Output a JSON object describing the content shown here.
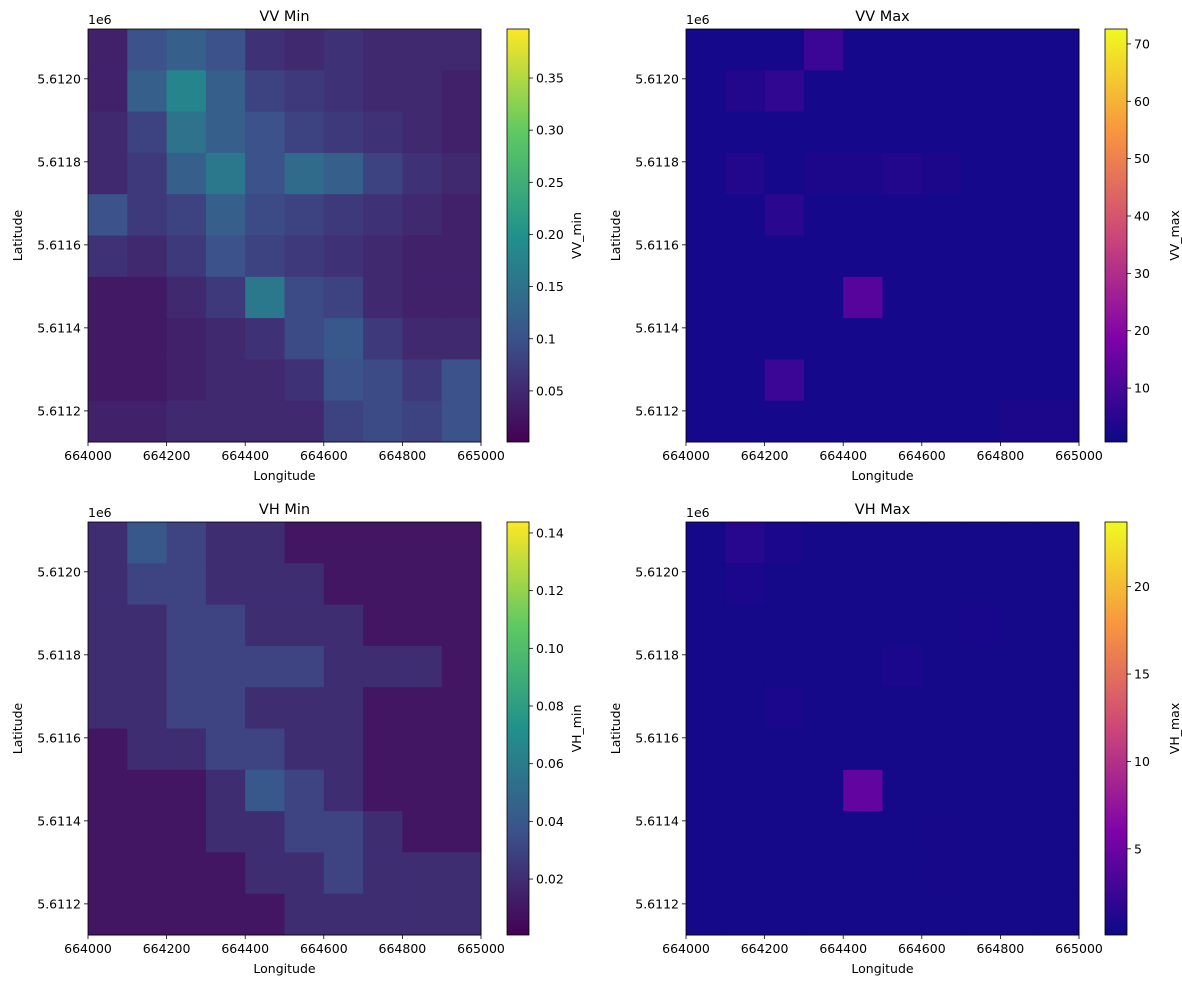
{
  "chart_data": [
    {
      "type": "heatmap",
      "title": "VV Min",
      "xlabel": "Longitude",
      "ylabel": "Latitude",
      "y_offset_label": "1e6",
      "colorbar_label": "VV_min",
      "cmap": "viridis",
      "xlim": [
        664000,
        665000
      ],
      "ylim": [
        5611125,
        5612120
      ],
      "xticks": [
        664000,
        664200,
        664400,
        664600,
        664800,
        665000
      ],
      "yticks": [
        {
          "value": 5611200,
          "label": "5.6112"
        },
        {
          "value": 5611400,
          "label": "5.6114"
        },
        {
          "value": 5611600,
          "label": "5.6116"
        },
        {
          "value": 5611800,
          "label": "5.6118"
        },
        {
          "value": 5612000,
          "label": "5.6120"
        }
      ],
      "clim": [
        0.001,
        0.397
      ],
      "cticks": [
        0.05,
        0.1,
        {
          "value": 0.15,
          "label": "0.15"
        },
        {
          "value": 0.2,
          "label": "0.20"
        },
        0.25,
        {
          "value": 0.3,
          "label": "0.30"
        },
        0.35
      ],
      "values": [
        [
          0.04,
          0.1,
          0.12,
          0.1,
          0.06,
          0.05,
          0.06,
          0.05,
          0.05,
          0.05
        ],
        [
          0.04,
          0.12,
          0.18,
          0.12,
          0.08,
          0.07,
          0.06,
          0.05,
          0.05,
          0.04
        ],
        [
          0.05,
          0.08,
          0.15,
          0.12,
          0.1,
          0.08,
          0.07,
          0.06,
          0.05,
          0.04
        ],
        [
          0.05,
          0.07,
          0.12,
          0.16,
          0.1,
          0.14,
          0.12,
          0.08,
          0.06,
          0.05
        ],
        [
          0.1,
          0.07,
          0.08,
          0.12,
          0.09,
          0.08,
          0.07,
          0.06,
          0.05,
          0.04
        ],
        [
          0.06,
          0.05,
          0.07,
          0.1,
          0.08,
          0.07,
          0.06,
          0.05,
          0.04,
          0.04
        ],
        [
          0.03,
          0.03,
          0.05,
          0.07,
          0.16,
          0.09,
          0.08,
          0.05,
          0.04,
          0.04
        ],
        [
          0.03,
          0.03,
          0.04,
          0.05,
          0.06,
          0.09,
          0.11,
          0.07,
          0.05,
          0.05
        ],
        [
          0.03,
          0.03,
          0.04,
          0.05,
          0.05,
          0.06,
          0.1,
          0.09,
          0.07,
          0.1
        ],
        [
          0.04,
          0.04,
          0.05,
          0.05,
          0.05,
          0.05,
          0.08,
          0.09,
          0.08,
          0.1
        ]
      ]
    },
    {
      "type": "heatmap",
      "title": "VV Max",
      "xlabel": "Longitude",
      "ylabel": "Latitude",
      "y_offset_label": "1e6",
      "colorbar_label": "VV_max",
      "cmap": "plasma",
      "xlim": [
        664000,
        665000
      ],
      "ylim": [
        5611125,
        5612120
      ],
      "xticks": [
        664000,
        664200,
        664400,
        664600,
        664800,
        665000
      ],
      "yticks": [
        {
          "value": 5611200,
          "label": "5.6112"
        },
        {
          "value": 5611400,
          "label": "5.6114"
        },
        {
          "value": 5611600,
          "label": "5.6116"
        },
        {
          "value": 5611800,
          "label": "5.6118"
        },
        {
          "value": 5612000,
          "label": "5.6120"
        }
      ],
      "clim": [
        0.6,
        72.6
      ],
      "cticks": [
        10,
        20,
        30,
        40,
        50,
        60,
        70
      ],
      "values": [
        [
          2,
          2,
          2,
          8,
          2,
          2,
          2,
          2,
          2,
          2
        ],
        [
          2,
          4,
          6,
          2,
          2,
          2,
          2,
          2,
          2,
          2
        ],
        [
          2,
          2,
          2,
          2,
          2,
          2,
          2,
          2,
          2,
          2
        ],
        [
          2,
          4,
          2,
          3,
          3,
          4,
          3,
          2,
          2,
          2
        ],
        [
          2,
          2,
          5,
          2,
          2,
          2,
          2,
          2,
          2,
          2
        ],
        [
          2,
          2,
          2,
          2,
          2,
          2,
          2,
          2,
          2,
          2
        ],
        [
          2,
          2,
          2,
          2,
          12,
          2,
          2,
          2,
          2,
          2
        ],
        [
          2,
          2,
          2,
          2,
          2,
          2,
          2,
          2,
          2,
          2
        ],
        [
          2,
          2,
          8,
          2,
          2,
          2,
          2,
          2,
          2,
          2
        ],
        [
          2,
          2,
          2,
          2,
          2,
          2,
          2,
          2,
          3,
          3
        ]
      ]
    },
    {
      "type": "heatmap",
      "title": "VH Min",
      "xlabel": "Longitude",
      "ylabel": "Latitude",
      "y_offset_label": "1e6",
      "colorbar_label": "VH_min",
      "cmap": "viridis",
      "xlim": [
        664000,
        665000
      ],
      "ylim": [
        5611125,
        5612120
      ],
      "xticks": [
        664000,
        664200,
        664400,
        664600,
        664800,
        665000
      ],
      "yticks": [
        {
          "value": 5611200,
          "label": "5.6112"
        },
        {
          "value": 5611400,
          "label": "5.6114"
        },
        {
          "value": 5611600,
          "label": "5.6116"
        },
        {
          "value": 5611800,
          "label": "5.6118"
        },
        {
          "value": 5612000,
          "label": "5.6120"
        }
      ],
      "clim": [
        0.0006,
        0.1438
      ],
      "cticks": [
        0.02,
        0.04,
        0.06,
        0.08,
        {
          "value": 0.1,
          "label": "0.10"
        },
        0.12,
        0.14
      ],
      "values": [
        [
          0.02,
          0.04,
          0.03,
          0.02,
          0.02,
          0.01,
          0.01,
          0.01,
          0.01,
          0.01
        ],
        [
          0.02,
          0.03,
          0.03,
          0.02,
          0.02,
          0.02,
          0.01,
          0.01,
          0.01,
          0.01
        ],
        [
          0.02,
          0.02,
          0.03,
          0.03,
          0.02,
          0.02,
          0.02,
          0.01,
          0.01,
          0.01
        ],
        [
          0.02,
          0.02,
          0.03,
          0.03,
          0.03,
          0.03,
          0.02,
          0.02,
          0.02,
          0.01
        ],
        [
          0.02,
          0.02,
          0.03,
          0.03,
          0.02,
          0.02,
          0.02,
          0.01,
          0.01,
          0.01
        ],
        [
          0.01,
          0.02,
          0.02,
          0.03,
          0.03,
          0.02,
          0.02,
          0.01,
          0.01,
          0.01
        ],
        [
          0.01,
          0.01,
          0.01,
          0.02,
          0.04,
          0.03,
          0.02,
          0.01,
          0.01,
          0.01
        ],
        [
          0.01,
          0.01,
          0.01,
          0.02,
          0.02,
          0.03,
          0.03,
          0.02,
          0.01,
          0.01
        ],
        [
          0.01,
          0.01,
          0.01,
          0.01,
          0.02,
          0.02,
          0.03,
          0.02,
          0.02,
          0.02
        ],
        [
          0.01,
          0.01,
          0.01,
          0.01,
          0.01,
          0.02,
          0.02,
          0.02,
          0.02,
          0.02
        ]
      ]
    },
    {
      "type": "heatmap",
      "title": "VH Max",
      "xlabel": "Longitude",
      "ylabel": "Latitude",
      "y_offset_label": "1e6",
      "colorbar_label": "VH_max",
      "cmap": "plasma",
      "xlim": [
        664000,
        665000
      ],
      "ylim": [
        5611125,
        5612120
      ],
      "xticks": [
        664000,
        664200,
        664400,
        664600,
        664800,
        665000
      ],
      "yticks": [
        {
          "value": 5611200,
          "label": "5.6112"
        },
        {
          "value": 5611400,
          "label": "5.6114"
        },
        {
          "value": 5611600,
          "label": "5.6116"
        },
        {
          "value": 5611800,
          "label": "5.6118"
        },
        {
          "value": 5612000,
          "label": "5.6120"
        }
      ],
      "clim": [
        0.07,
        23.7
      ],
      "cticks": [
        5,
        10,
        15,
        20
      ],
      "values": [
        [
          0.5,
          1.5,
          0.8,
          0.5,
          0.5,
          0.5,
          0.5,
          0.5,
          0.5,
          0.5
        ],
        [
          0.5,
          0.8,
          0.5,
          0.5,
          0.5,
          0.5,
          0.5,
          0.5,
          0.5,
          0.5
        ],
        [
          0.5,
          0.5,
          0.5,
          0.5,
          0.5,
          0.5,
          0.5,
          0.7,
          0.5,
          0.5
        ],
        [
          0.5,
          0.5,
          0.5,
          0.5,
          0.5,
          0.8,
          0.5,
          0.5,
          0.5,
          0.5
        ],
        [
          0.5,
          0.5,
          0.8,
          0.5,
          0.5,
          0.5,
          0.5,
          0.5,
          0.5,
          0.5
        ],
        [
          0.5,
          0.5,
          0.5,
          0.5,
          0.5,
          0.5,
          0.5,
          0.5,
          0.5,
          0.5
        ],
        [
          0.5,
          0.5,
          0.5,
          0.5,
          4.5,
          0.5,
          0.5,
          0.5,
          0.5,
          0.5
        ],
        [
          0.5,
          0.5,
          0.5,
          0.5,
          0.5,
          0.5,
          0.6,
          0.5,
          0.5,
          0.5
        ],
        [
          0.5,
          0.5,
          0.5,
          0.5,
          0.5,
          0.5,
          0.6,
          0.5,
          0.5,
          0.5
        ],
        [
          0.5,
          0.5,
          0.5,
          0.5,
          0.5,
          0.5,
          0.5,
          0.5,
          0.5,
          0.5
        ]
      ]
    }
  ]
}
